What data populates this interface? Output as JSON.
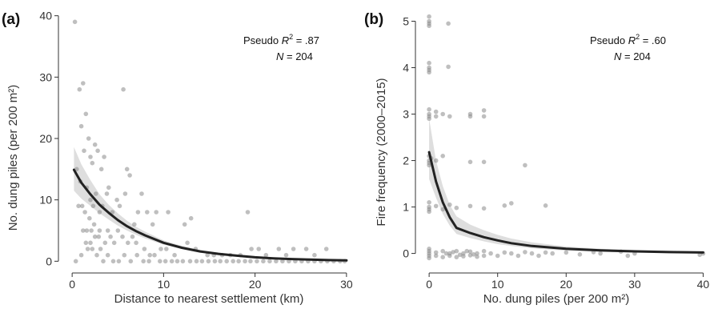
{
  "chart_data": [
    {
      "type": "scatter",
      "panel_label": "(a)",
      "xlabel": "Distance to nearest settlement (km)",
      "ylabel": "No. dung piles (per 200 m²)",
      "xlim": [
        -1.5,
        31.5
      ],
      "ylim": [
        -1,
        41
      ],
      "x_ticks": [
        0,
        10,
        20,
        30
      ],
      "y_ticks": [
        0,
        10,
        20,
        30,
        40
      ],
      "annotation": {
        "r2_prefix": "Pseudo ",
        "r2_symbol": "R",
        "r2_sup": "2",
        "r2_value": " = .87",
        "n_symbol": "N",
        "n_value": " = 204"
      },
      "grid": false,
      "points": [
        [
          0.3,
          39
        ],
        [
          0.5,
          15
        ],
        [
          0.8,
          28
        ],
        [
          1.2,
          29
        ],
        [
          1.0,
          22
        ],
        [
          1.5,
          24
        ],
        [
          1.3,
          18
        ],
        [
          1.8,
          20
        ],
        [
          2.0,
          17
        ],
        [
          0.9,
          13
        ],
        [
          1.6,
          12
        ],
        [
          2.2,
          16
        ],
        [
          2.5,
          19
        ],
        [
          2.8,
          18
        ],
        [
          3.2,
          15
        ],
        [
          3.5,
          17
        ],
        [
          2.0,
          10
        ],
        [
          2.3,
          9
        ],
        [
          2.6,
          11
        ],
        [
          1.1,
          9
        ],
        [
          1.4,
          8
        ],
        [
          0.7,
          9
        ],
        [
          1.9,
          7
        ],
        [
          2.1,
          5
        ],
        [
          1.6,
          5
        ],
        [
          1.2,
          5
        ],
        [
          2.4,
          6
        ],
        [
          3.0,
          8
        ],
        [
          3.3,
          9
        ],
        [
          3.8,
          11
        ],
        [
          4.0,
          12
        ],
        [
          4.4,
          8
        ],
        [
          4.9,
          10
        ],
        [
          5.2,
          9
        ],
        [
          5.6,
          28
        ],
        [
          6.0,
          15
        ],
        [
          6.3,
          14
        ],
        [
          5.8,
          11
        ],
        [
          6.8,
          6
        ],
        [
          7.2,
          8
        ],
        [
          7.6,
          11
        ],
        [
          8.2,
          8
        ],
        [
          8.8,
          6
        ],
        [
          9.2,
          8
        ],
        [
          10.5,
          8
        ],
        [
          12.3,
          6
        ],
        [
          13.0,
          7
        ],
        [
          19.2,
          8
        ],
        [
          2.9,
          4
        ],
        [
          3.1,
          2
        ],
        [
          3.6,
          3
        ],
        [
          3.9,
          5
        ],
        [
          4.2,
          4
        ],
        [
          4.6,
          3
        ],
        [
          5.0,
          5
        ],
        [
          5.5,
          4
        ],
        [
          6.1,
          3
        ],
        [
          6.6,
          4
        ],
        [
          7.0,
          3
        ],
        [
          7.9,
          2
        ],
        [
          8.5,
          1
        ],
        [
          9.7,
          2
        ],
        [
          10.3,
          2
        ],
        [
          11.2,
          1
        ],
        [
          12.6,
          3
        ],
        [
          13.5,
          2
        ],
        [
          14.8,
          1
        ],
        [
          15.5,
          1
        ],
        [
          16.4,
          1
        ],
        [
          17.3,
          1
        ],
        [
          18.4,
          1
        ],
        [
          19.6,
          2
        ],
        [
          20.4,
          2
        ],
        [
          21.2,
          1
        ],
        [
          22.6,
          2
        ],
        [
          24.2,
          2
        ],
        [
          25.6,
          2
        ],
        [
          27.8,
          2
        ],
        [
          26.5,
          1
        ],
        [
          23.4,
          1
        ],
        [
          0.4,
          0
        ],
        [
          1.0,
          1
        ],
        [
          1.7,
          2
        ],
        [
          2.2,
          2
        ],
        [
          2.7,
          1
        ],
        [
          3.4,
          0
        ],
        [
          3.9,
          1
        ],
        [
          4.5,
          0
        ],
        [
          5.1,
          0
        ],
        [
          5.7,
          1
        ],
        [
          6.4,
          0
        ],
        [
          7.1,
          1
        ],
        [
          7.8,
          0
        ],
        [
          8.4,
          0
        ],
        [
          9.0,
          1
        ],
        [
          9.6,
          0
        ],
        [
          10.2,
          0
        ],
        [
          10.9,
          0
        ],
        [
          11.5,
          0
        ],
        [
          12.1,
          0
        ],
        [
          12.9,
          0
        ],
        [
          13.6,
          0
        ],
        [
          14.2,
          0
        ],
        [
          14.9,
          0
        ],
        [
          15.6,
          0
        ],
        [
          16.2,
          0
        ],
        [
          16.9,
          0
        ],
        [
          17.6,
          0
        ],
        [
          18.2,
          0
        ],
        [
          18.9,
          0
        ],
        [
          19.5,
          0
        ],
        [
          20.2,
          0
        ],
        [
          20.9,
          0
        ],
        [
          21.6,
          0
        ],
        [
          22.3,
          0
        ],
        [
          23.0,
          0
        ],
        [
          23.7,
          0
        ],
        [
          24.4,
          0
        ],
        [
          25.1,
          0
        ],
        [
          25.8,
          0
        ],
        [
          26.5,
          0
        ],
        [
          27.2,
          0
        ],
        [
          27.9,
          0
        ],
        [
          28.6,
          0
        ],
        [
          29.3,
          0
        ],
        [
          29.8,
          0
        ],
        [
          2.0,
          3
        ],
        [
          2.5,
          4
        ],
        [
          3.0,
          5
        ],
        [
          1.5,
          3
        ]
      ],
      "fit_x": [
        0.2,
        1,
        2,
        3,
        4,
        5,
        6,
        7,
        8,
        10,
        12,
        14,
        16,
        18,
        20,
        22,
        24,
        26,
        28,
        30
      ],
      "fit_y": [
        14.9,
        12.8,
        10.9,
        9.2,
        7.9,
        6.7,
        5.7,
        4.9,
        4.2,
        3.0,
        2.2,
        1.6,
        1.2,
        0.9,
        0.65,
        0.48,
        0.35,
        0.26,
        0.19,
        0.14
      ],
      "ci_lower": [
        11.5,
        10.2,
        9.0,
        7.8,
        6.8,
        5.8,
        5.0,
        4.3,
        3.7,
        2.7,
        2.0,
        1.4,
        1.0,
        0.75,
        0.55,
        0.38,
        0.27,
        0.2,
        0.14,
        0.1
      ],
      "ci_upper": [
        18.6,
        15.8,
        13.2,
        10.9,
        9.2,
        7.8,
        6.6,
        5.6,
        4.8,
        3.4,
        2.5,
        1.85,
        1.4,
        1.05,
        0.78,
        0.6,
        0.45,
        0.34,
        0.26,
        0.2
      ]
    },
    {
      "type": "scatter",
      "panel_label": "(b)",
      "xlabel": "No. dung piles (per 200 m²)",
      "ylabel": "Fire frequency (2000–2015)",
      "xlim": [
        -2,
        41
      ],
      "ylim": [
        -0.3,
        5.25
      ],
      "x_ticks": [
        0,
        10,
        20,
        30,
        40
      ],
      "y_ticks": [
        0,
        1,
        2,
        3,
        4,
        5
      ],
      "annotation": {
        "r2_prefix": "Pseudo ",
        "r2_symbol": "R",
        "r2_sup": "2",
        "r2_value": " = .60",
        "n_symbol": "N",
        "n_value": " = 204"
      },
      "grid": false,
      "points": [
        [
          0,
          5.1
        ],
        [
          0,
          5.0
        ],
        [
          0,
          4.95
        ],
        [
          0,
          4.9
        ],
        [
          2.8,
          4.95
        ],
        [
          0,
          4.1
        ],
        [
          0,
          4.0
        ],
        [
          0,
          3.95
        ],
        [
          0,
          3.9
        ],
        [
          2.8,
          4.02
        ],
        [
          0,
          3.1
        ],
        [
          0,
          3.0
        ],
        [
          0,
          2.95
        ],
        [
          0,
          2.9
        ],
        [
          1,
          3.05
        ],
        [
          1,
          2.95
        ],
        [
          2,
          3.0
        ],
        [
          3,
          2.95
        ],
        [
          6,
          2.95
        ],
        [
          6,
          3.0
        ],
        [
          8,
          3.08
        ],
        [
          8,
          2.95
        ],
        [
          0,
          2.1
        ],
        [
          0,
          2.0
        ],
        [
          0,
          1.95
        ],
        [
          0,
          1.9
        ],
        [
          0.3,
          2.05
        ],
        [
          1,
          2.0
        ],
        [
          2,
          2.1
        ],
        [
          6,
          1.97
        ],
        [
          8,
          1.97
        ],
        [
          14,
          1.9
        ],
        [
          0,
          1.1
        ],
        [
          0,
          1.0
        ],
        [
          0,
          0.95
        ],
        [
          0,
          0.9
        ],
        [
          1,
          1.02
        ],
        [
          2,
          0.95
        ],
        [
          3,
          1.05
        ],
        [
          4,
          0.98
        ],
        [
          6,
          1.02
        ],
        [
          8,
          0.97
        ],
        [
          11,
          1.03
        ],
        [
          12,
          1.08
        ],
        [
          17,
          1.03
        ],
        [
          0,
          0.05
        ],
        [
          0,
          0.0
        ],
        [
          0,
          -0.05
        ],
        [
          0,
          -0.1
        ],
        [
          0,
          0.1
        ],
        [
          1,
          0.02
        ],
        [
          1,
          -0.05
        ],
        [
          2,
          0.05
        ],
        [
          2,
          -0.08
        ],
        [
          3,
          0.0
        ],
        [
          3,
          -0.05
        ],
        [
          4,
          0.05
        ],
        [
          4,
          -0.08
        ],
        [
          5,
          0.0
        ],
        [
          5,
          -0.06
        ],
        [
          6,
          0.04
        ],
        [
          6,
          -0.04
        ],
        [
          7,
          0.0
        ],
        [
          7,
          -0.07
        ],
        [
          8,
          0.05
        ],
        [
          8,
          -0.05
        ],
        [
          9,
          0.0
        ],
        [
          10,
          -0.05
        ],
        [
          11,
          0.02
        ],
        [
          12,
          0.0
        ],
        [
          13,
          -0.05
        ],
        [
          14,
          0.03
        ],
        [
          15,
          0.0
        ],
        [
          16,
          -0.05
        ],
        [
          17,
          0.02
        ],
        [
          18,
          0.0
        ],
        [
          20,
          0.02
        ],
        [
          22,
          -0.02
        ],
        [
          24,
          0.03
        ],
        [
          25,
          0.0
        ],
        [
          28,
          0.04
        ],
        [
          29,
          -0.05
        ],
        [
          30,
          0.0
        ],
        [
          40,
          0.0
        ],
        [
          39.5,
          -0.03
        ],
        [
          2.5,
          0.0
        ],
        [
          3.5,
          0.03
        ],
        [
          4.5,
          -0.03
        ],
        [
          5.5,
          0.05
        ],
        [
          6.5,
          -0.02
        ]
      ],
      "fit_x": [
        0,
        1,
        2,
        3,
        4,
        6,
        8,
        10,
        12,
        15,
        20,
        25,
        30,
        35,
        40
      ],
      "fit_y": [
        2.18,
        1.55,
        1.1,
        0.78,
        0.55,
        0.44,
        0.35,
        0.28,
        0.22,
        0.16,
        0.1,
        0.065,
        0.045,
        0.03,
        0.02
      ],
      "ci_lower": [
        1.6,
        1.2,
        0.85,
        0.6,
        0.42,
        0.33,
        0.26,
        0.2,
        0.16,
        0.11,
        0.06,
        0.035,
        0.02,
        0.012,
        0.006
      ],
      "ci_upper": [
        2.9,
        2.0,
        1.45,
        1.05,
        0.8,
        0.62,
        0.5,
        0.4,
        0.32,
        0.24,
        0.15,
        0.1,
        0.075,
        0.055,
        0.04
      ]
    }
  ]
}
